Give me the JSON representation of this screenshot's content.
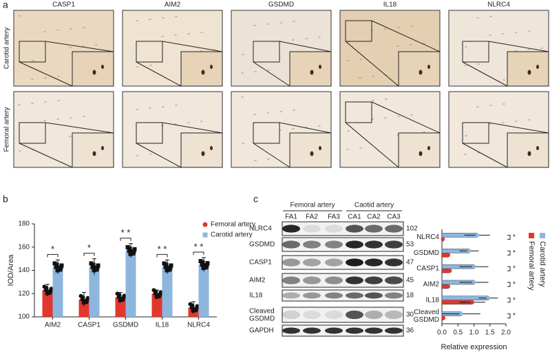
{
  "panel_labels": [
    "a",
    "b",
    "c"
  ],
  "micrographs": {
    "columns": [
      "CASP1",
      "AIM2",
      "GSDMD",
      "IL18",
      "NLRC4"
    ],
    "rows": [
      "Carotid artery",
      "Femoral artery"
    ]
  },
  "blot": {
    "groups": [
      "Femoral artery",
      "Caotid artery"
    ],
    "lanes": [
      "FA1",
      "FA2",
      "FA3",
      "CA1",
      "CA2",
      "CA3"
    ],
    "rows": [
      {
        "label": "NLRC4",
        "mw": "102"
      },
      {
        "label": "GSDMD",
        "mw": "53"
      },
      {
        "label": "CASP1",
        "mw": "47"
      },
      {
        "label": "AIM2",
        "mw": "45"
      },
      {
        "label": "IL18",
        "mw": "18"
      },
      {
        "label": "Cleaved GSDMD",
        "mw": "30"
      },
      {
        "label": "GAPDH",
        "mw": "36"
      }
    ]
  },
  "chart_data": [
    {
      "type": "bar",
      "ylabel": "IOD/Area",
      "categories": [
        "AIM2",
        "CASP1",
        "GSDMD",
        "IL18",
        "NLRC4"
      ],
      "series": [
        {
          "name": "Femoral artery",
          "color": "#e2372c",
          "values": [
            123,
            115,
            117,
            120,
            108
          ],
          "errors": [
            5,
            6,
            4,
            3,
            5
          ]
        },
        {
          "name": "Carotid artery",
          "color": "#8db6df",
          "values": [
            143,
            143,
            157,
            143,
            145
          ],
          "errors": [
            6,
            7,
            6,
            6,
            6
          ]
        }
      ],
      "ylim": [
        100,
        180
      ],
      "yticks": [
        100,
        120,
        140,
        160,
        180
      ],
      "significance": [
        "*",
        "*",
        "* *",
        "* *",
        "* *"
      ],
      "legend": "upper right"
    },
    {
      "type": "barh",
      "xlabel": "Relative expression",
      "categories": [
        "NLRC4",
        "GSDMD",
        "CASP1",
        "AIM2",
        "IL18",
        "Cleaved GSDMD"
      ],
      "series": [
        {
          "name": "Femoral artery",
          "color": "#e2372c",
          "values": [
            0.03,
            0.2,
            0.25,
            0.2,
            0.95,
            0.05
          ],
          "errors": [
            0.02,
            0.05,
            0.05,
            0.05,
            0.4,
            0.03
          ]
        },
        {
          "name": "Carotid artery",
          "color": "#8db6df",
          "values": [
            1.1,
            0.85,
            1.0,
            1.0,
            1.45,
            0.6
          ],
          "errors": [
            0.4,
            0.3,
            0.45,
            0.45,
            0.3,
            0.6
          ]
        }
      ],
      "xlim": [
        0,
        2
      ],
      "xticks": [
        {
          "value": 0,
          "label": "0.0"
        },
        0.5,
        {
          "value": 1,
          "label": "1.0"
        },
        1.5,
        {
          "value": 2,
          "label": "2.0"
        }
      ],
      "significance": [
        "*",
        "*",
        "*",
        "*",
        "*",
        "*"
      ],
      "legend": "right"
    }
  ]
}
